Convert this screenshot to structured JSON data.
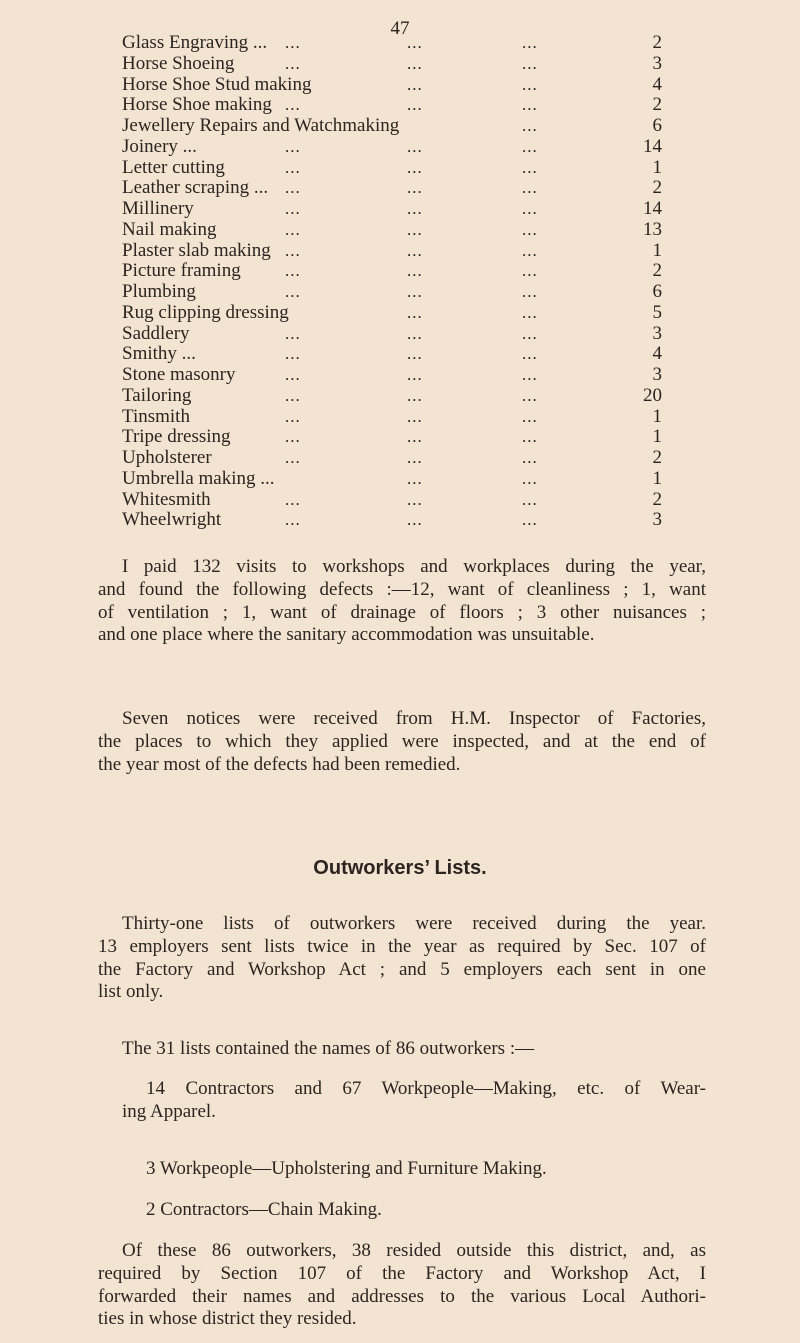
{
  "page_number": "47",
  "trades": [
    {
      "label": "Glass Engraving ...",
      "value": "2"
    },
    {
      "label": "Horse Shoeing",
      "value": "3"
    },
    {
      "label": "Horse Shoe Stud making",
      "value": "4"
    },
    {
      "label": "Horse Shoe making",
      "value": "2"
    },
    {
      "label": "Jewellery Repairs and Watchmaking",
      "value": "6"
    },
    {
      "label": "Joinery ...",
      "value": "14"
    },
    {
      "label": "Letter cutting",
      "value": "1"
    },
    {
      "label": "Leather scraping ...",
      "value": "2"
    },
    {
      "label": "Millinery",
      "value": "14"
    },
    {
      "label": "Nail making",
      "value": "13"
    },
    {
      "label": "Plaster slab making",
      "value": "1"
    },
    {
      "label": "Picture framing",
      "value": "2"
    },
    {
      "label": "Plumbing",
      "value": "6"
    },
    {
      "label": "Rug clipping dressing",
      "value": "5"
    },
    {
      "label": "Saddlery",
      "value": "3"
    },
    {
      "label": "Smithy ...",
      "value": "4"
    },
    {
      "label": "Stone masonry",
      "value": "3"
    },
    {
      "label": "Tailoring",
      "value": "20"
    },
    {
      "label": "Tinsmith",
      "value": "1"
    },
    {
      "label": "Tripe dressing",
      "value": "1"
    },
    {
      "label": "Upholsterer",
      "value": "2"
    },
    {
      "label": "Umbrella making ...",
      "value": "1"
    },
    {
      "label": "Whitesmith",
      "value": "2"
    },
    {
      "label": "Wheelwright",
      "value": "3"
    }
  ],
  "leader": "...",
  "paragraph_visits": [
    "I paid 132 visits to workshops and workplaces during the year,",
    "and found the following defects :—12, want of cleanliness ; 1, want",
    "of ventilation ; 1, want of drainage of floors ; 3 other nuisances ;",
    "and one place where the sanitary accommodation was unsuitable."
  ],
  "paragraph_notices": [
    "Seven notices were received from H.M. Inspector of Factories,",
    "the places to which they applied were inspected, and at the end of",
    "the year most of the defects had been remedied."
  ],
  "heading": "Outworkers’ Lists.",
  "paragraph_lists": [
    "Thirty-one lists of outworkers were received during the year.",
    "13 employers sent lists twice in the year as required by Sec. 107 of",
    "the Factory and Workshop Act ; and 5 employers each sent in one",
    "list only."
  ],
  "paragraph_names": "The 31 lists contained the names of 86 outworkers :—",
  "outworker_items": [
    [
      "14 Contractors and 67 Workpeople—Making, etc. of Wear-",
      "ing Apparel."
    ],
    [
      "3 Workpeople—Upholstering and Furniture Making."
    ],
    [
      "2 Contractors—Chain Making."
    ]
  ],
  "paragraph_outside": [
    "Of these 86 outworkers, 38 resided outside this district, and, as",
    "required by Section 107 of the Factory and Workshop Act, I",
    "forwarded their names and addresses to the various Local Authori-",
    "ties in whose district they resided."
  ]
}
